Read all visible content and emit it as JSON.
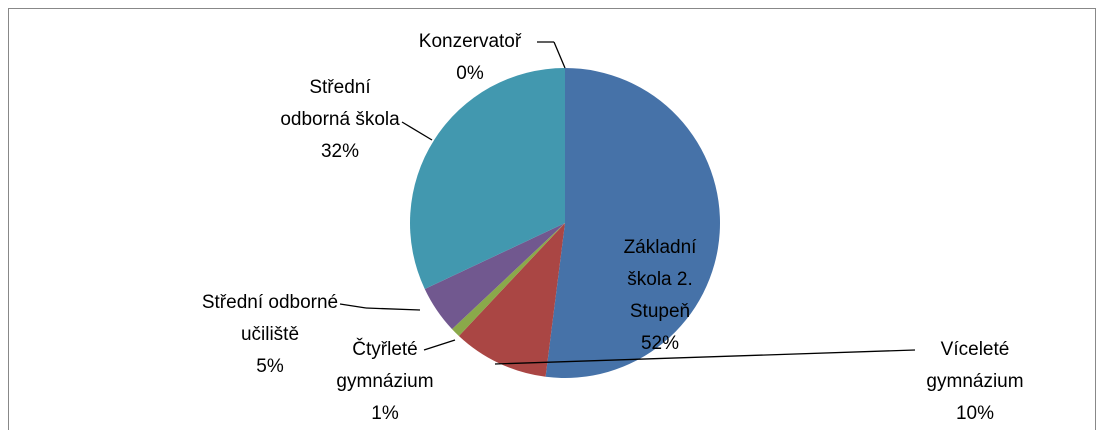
{
  "chart_data": {
    "type": "pie",
    "categories": [
      "Základní\nškola 2.\nStupeň",
      "Víceleté\ngymnázium",
      "Čtyřleté\ngymnázium",
      "Střední odborné\nučiliště",
      "Střední\nodborná škola",
      "Konzervatoř"
    ],
    "values": [
      52,
      10,
      1,
      5,
      32,
      0
    ],
    "value_labels": [
      "52%",
      "10%",
      "1%",
      "5%",
      "32%",
      "0%"
    ],
    "colors": [
      "#4672a8",
      "#aa4644",
      "#8aa94a",
      "#71588f",
      "#4298af",
      "#db843d"
    ]
  }
}
